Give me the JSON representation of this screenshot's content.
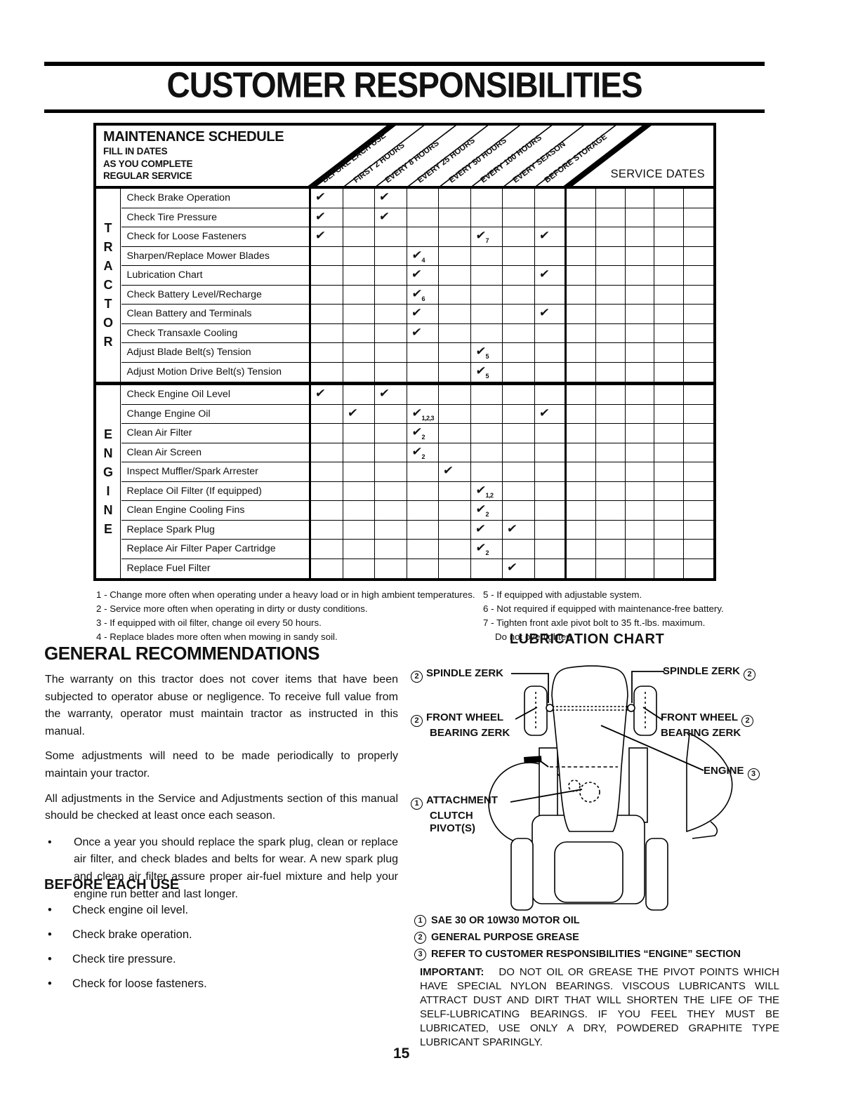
{
  "page": {
    "title": "CUSTOMER RESPONSIBILITIES",
    "number": "15"
  },
  "maintenance_table": {
    "title": "MAINTENANCE SCHEDULE",
    "subtitle_lines": [
      "FILL IN DATES",
      "AS YOU COMPLETE",
      "REGULAR SERVICE"
    ],
    "interval_columns": [
      "BEFORE EACH USE",
      "FIRST 2 HOURS",
      "EVERY 8 HOURS",
      "EVERY 25 HOURS",
      "EVERY 50 HOURS",
      "EVERY 100 HOURS",
      "EVERY SEASON",
      "BEFORE STORAGE"
    ],
    "service_dates_label": "SERVICE DATES",
    "service_date_columns": 5,
    "check_symbol": "✔",
    "sections": [
      {
        "label": "TRACTOR",
        "rows": [
          {
            "task": "Check Brake Operation",
            "checks": [
              {
                "col": 0
              },
              {
                "col": 2
              }
            ]
          },
          {
            "task": "Check Tire Pressure",
            "checks": [
              {
                "col": 0
              },
              {
                "col": 2
              }
            ]
          },
          {
            "task": "Check for Loose Fasteners",
            "checks": [
              {
                "col": 0
              },
              {
                "col": 5,
                "note": "7"
              },
              {
                "col": 7
              }
            ]
          },
          {
            "task": "Sharpen/Replace Mower Blades",
            "checks": [
              {
                "col": 3,
                "note": "4"
              }
            ]
          },
          {
            "task": "Lubrication Chart",
            "checks": [
              {
                "col": 3
              },
              {
                "col": 7
              }
            ]
          },
          {
            "task": "Check Battery Level/Recharge",
            "checks": [
              {
                "col": 3,
                "note": "6"
              }
            ]
          },
          {
            "task": "Clean Battery and Terminals",
            "checks": [
              {
                "col": 3
              },
              {
                "col": 7
              }
            ]
          },
          {
            "task": "Check Transaxle Cooling",
            "checks": [
              {
                "col": 3
              }
            ]
          },
          {
            "task": "Adjust Blade Belt(s) Tension",
            "checks": [
              {
                "col": 5,
                "note": "5"
              }
            ]
          },
          {
            "task": "Adjust Motion Drive Belt(s) Tension",
            "checks": [
              {
                "col": 5,
                "note": "5"
              }
            ]
          }
        ]
      },
      {
        "label": "ENGINE",
        "rows": [
          {
            "task": "Check Engine Oil Level",
            "checks": [
              {
                "col": 0
              },
              {
                "col": 2
              }
            ]
          },
          {
            "task": "Change Engine Oil",
            "checks": [
              {
                "col": 1
              },
              {
                "col": 3,
                "note": "1,2,3"
              },
              {
                "col": 7
              }
            ]
          },
          {
            "task": "Clean Air Filter",
            "checks": [
              {
                "col": 3,
                "note": "2"
              }
            ]
          },
          {
            "task": "Clean Air Screen",
            "checks": [
              {
                "col": 3,
                "note": "2"
              }
            ]
          },
          {
            "task": "Inspect Muffler/Spark Arrester",
            "checks": [
              {
                "col": 4
              }
            ]
          },
          {
            "task": "Replace Oil Filter (If equipped)",
            "checks": [
              {
                "col": 5,
                "note": "1,2"
              }
            ]
          },
          {
            "task": "Clean Engine Cooling Fins",
            "checks": [
              {
                "col": 5,
                "note": "2"
              }
            ]
          },
          {
            "task": "Replace Spark Plug",
            "checks": [
              {
                "col": 5
              },
              {
                "col": 6
              }
            ]
          },
          {
            "task": "Replace Air Filter Paper Cartridge",
            "checks": [
              {
                "col": 5,
                "note": "2"
              }
            ]
          },
          {
            "task": "Replace Fuel Filter",
            "checks": [
              {
                "col": 6
              }
            ]
          }
        ]
      }
    ]
  },
  "footnotes": {
    "left": [
      "1 - Change more often when operating under a heavy load or in high ambient temperatures.",
      "2 - Service more often when operating in dirty or dusty conditions.",
      "3 - If equipped with oil filter, change oil every 50 hours.",
      "4 - Replace blades more often when mowing in sandy soil."
    ],
    "right": [
      "5 - If equipped with adjustable system.",
      "6 - Not required if equipped with maintenance-free battery.",
      "7 - Tighten front axle pivot bolt to 35 ft.-lbs. maximum.",
      "Do not overtighten."
    ]
  },
  "general_recommendations": {
    "heading": "GENERAL RECOMMENDATIONS",
    "paragraphs": [
      "The warranty on this tractor does not cover items that have been subjected to operator abuse or negligence.  To receive full value from the warranty, operator must maintain tractor as instructed in this manual.",
      "Some adjustments will need to be made periodically to properly maintain your tractor.",
      "All adjustments in the Service and Adjustments section of this manual should be checked at least once each season."
    ],
    "bullet_char": "•",
    "bullets": [
      "Once a year you should replace the spark plug, clean or replace air filter, and check blades and belts for wear.  A new spark plug and clean air filter assure proper air-fuel mixture and help your engine run better and last longer."
    ]
  },
  "before_each_use": {
    "heading": "BEFORE EACH USE",
    "bullet_char": "•",
    "items": [
      "Check engine oil level.",
      "Check brake operation.",
      "Check tire pressure.",
      "Check for loose fasteners."
    ]
  },
  "lubrication_chart": {
    "title": "LUBRICATION CHART",
    "spindle_zerk_left": {
      "num": "2",
      "text": "SPINDLE ZERK"
    },
    "spindle_zerk_right": {
      "num": "2",
      "text": "SPINDLE ZERK"
    },
    "front_wheel_left": {
      "num": "2",
      "line1": "FRONT WHEEL",
      "line2": "BEARING ZERK"
    },
    "front_wheel_right": {
      "num": "2",
      "line1": "FRONT WHEEL",
      "line2": "BEARING ZERK"
    },
    "engine": {
      "num": "3",
      "text": "ENGINE"
    },
    "attachment_clutch": {
      "num": "1",
      "line1": "ATTACHMENT",
      "line2": "CLUTCH",
      "line3": "PIVOT(S)"
    },
    "legend": [
      {
        "num": "1",
        "text": "SAE 30 OR 10W30 MOTOR OIL"
      },
      {
        "num": "2",
        "text": "GENERAL PURPOSE GREASE"
      },
      {
        "num": "3",
        "text": "REFER TO CUSTOMER RESPONSIBILITIES “ENGINE” SECTION"
      }
    ],
    "important_label": "IMPORTANT:",
    "important_text": "DO NOT OIL OR GREASE THE PIVOT POINTS WHICH HAVE SPECIAL NYLON BEARINGS.  VISCOUS LUBRICANTS WILL ATTRACT DUST AND DIRT THAT WILL SHORTEN THE LIFE OF THE SELF-LUBRICATING BEARINGS.  IF YOU FEEL THEY MUST BE LUBRICATED, USE ONLY A DRY, POWDERED GRAPHITE TYPE LUBRICANT SPARINGLY."
  }
}
